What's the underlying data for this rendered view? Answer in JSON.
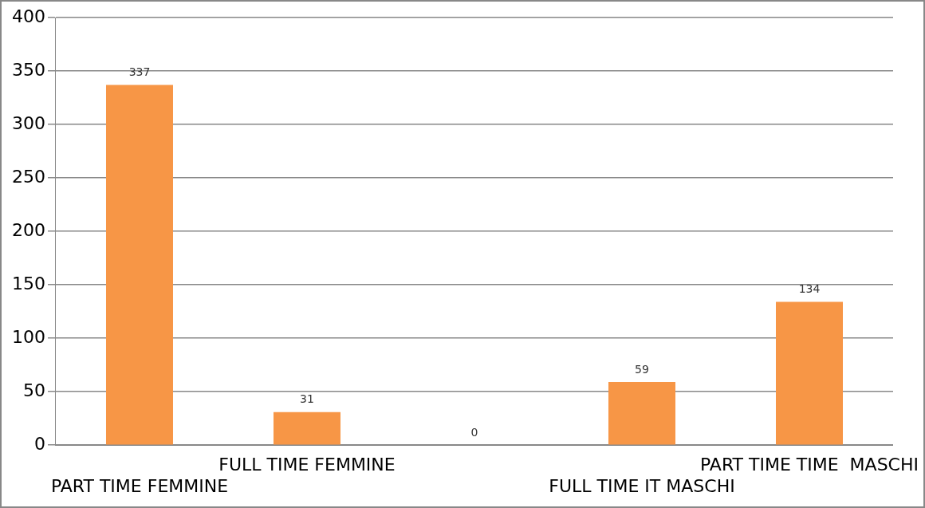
{
  "chart_data": {
    "type": "bar",
    "categories": [
      "PART TIME FEMMINE",
      "FULL TIME FEMMINE",
      null,
      "FULL TIME IT MASCHI",
      "PART TIME TIME  MASCHI"
    ],
    "values": [
      337,
      31,
      0,
      59,
      134
    ],
    "color": "#f79646",
    "ylim": [
      0,
      400
    ],
    "yticks": [
      0,
      50,
      100,
      150,
      200,
      250,
      300,
      350,
      400
    ],
    "grid": "y",
    "data_labels": true,
    "legend": false
  }
}
